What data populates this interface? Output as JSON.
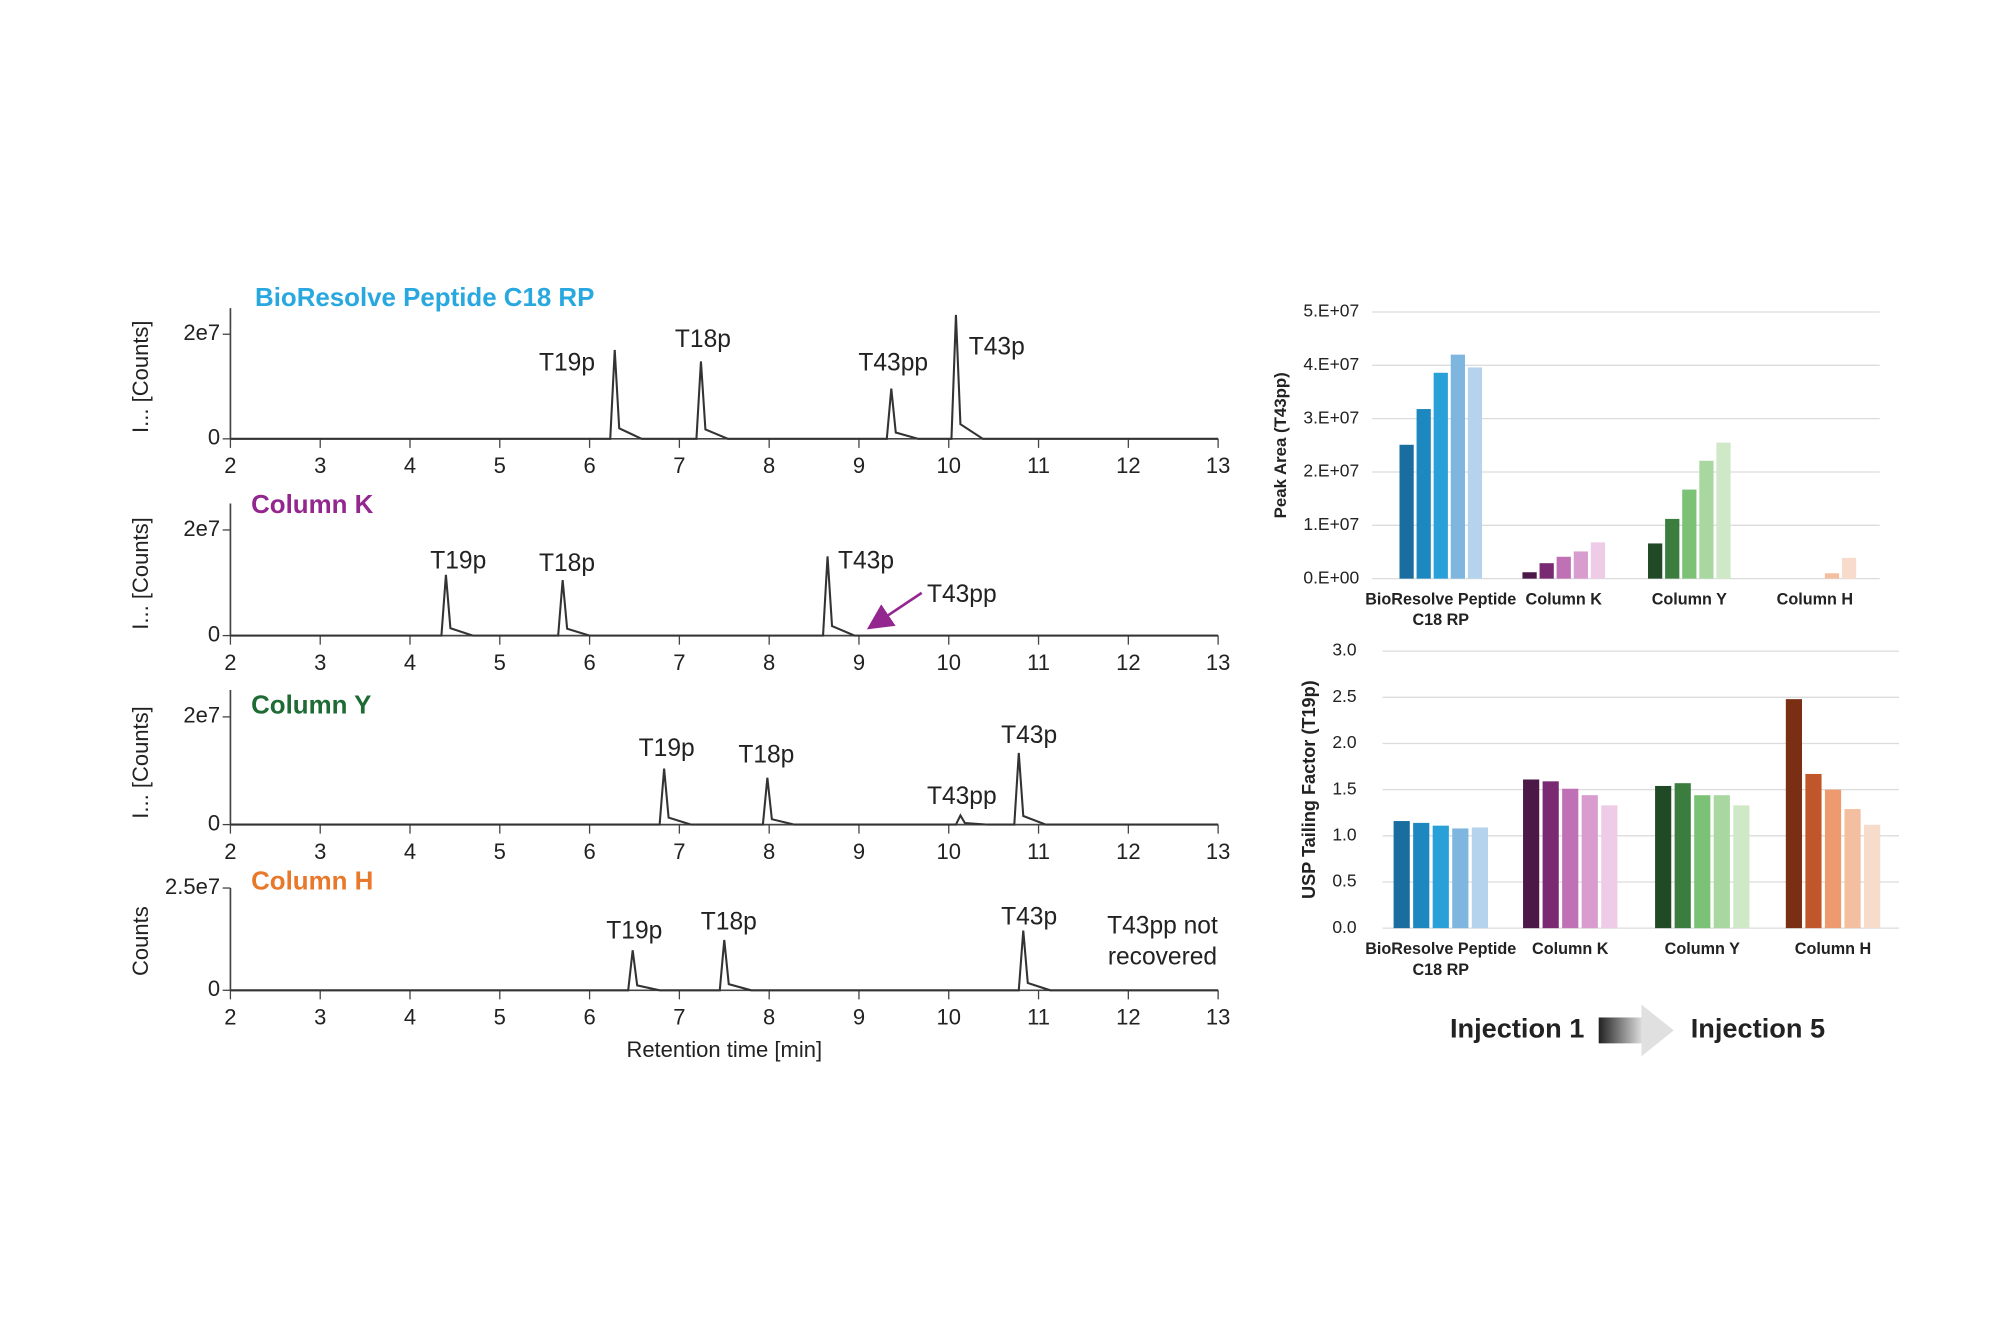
{
  "chart_data": [
    {
      "type": "line",
      "title": "BioResolve Peptide C18 RP",
      "title_color": "#29a8e0",
      "ylabel": "I... [Counts]",
      "color": "#333333",
      "x": [
        2,
        6.23,
        6.28,
        6.33,
        6.58,
        7.19,
        7.24,
        7.29,
        7.54,
        9.31,
        9.36,
        9.41,
        9.66,
        10.03,
        10.08,
        10.13,
        10.38,
        13
      ],
      "values": [
        0,
        0,
        17000000,
        2000000,
        0,
        0,
        14800000,
        1800000,
        0,
        0,
        9600000,
        1200000,
        0,
        0,
        23700000,
        2800000,
        0,
        0
      ],
      "xlim": [
        2,
        13
      ],
      "xticks": [
        2,
        3,
        4,
        5,
        6,
        7,
        8,
        9,
        10,
        11,
        12,
        13
      ],
      "ylim": [
        0,
        25000000
      ],
      "yticks": [
        0,
        {
          "value": 20000000,
          "label": "2e7"
        }
      ],
      "annotations": [
        "T19p",
        "T18p",
        "T43pp",
        "T43p"
      ]
    },
    {
      "type": "line",
      "title": "Column K",
      "title_color": "#93278f",
      "ylabel": "I... [Counts]",
      "color": "#333333",
      "x": [
        2,
        4.35,
        4.4,
        4.45,
        4.7,
        5.65,
        5.7,
        5.75,
        6.0,
        8.6,
        8.65,
        8.7,
        8.95,
        13
      ],
      "values": [
        0,
        0,
        11500000,
        1400000,
        0,
        0,
        10500000,
        1300000,
        0,
        0,
        15000000,
        1800000,
        0,
        0
      ],
      "xlim": [
        2,
        13
      ],
      "xticks": [
        2,
        3,
        4,
        5,
        6,
        7,
        8,
        9,
        10,
        11,
        12,
        13
      ],
      "ylim": [
        0,
        25000000
      ],
      "yticks": [
        0,
        {
          "value": 20000000,
          "label": "2e7"
        }
      ],
      "annotations": [
        "T19p",
        "T18p",
        "T43p",
        "T43pp"
      ]
    },
    {
      "type": "line",
      "title": "Column Y",
      "title_color": "#1e6b34",
      "ylabel": "I... [Counts]",
      "color": "#333333",
      "x": [
        2,
        6.78,
        6.83,
        6.88,
        7.13,
        7.93,
        7.98,
        8.03,
        8.28,
        10.08,
        10.13,
        10.18,
        10.43,
        10.73,
        10.78,
        10.83,
        11.08,
        13
      ],
      "values": [
        0,
        0,
        10400000,
        1300000,
        0,
        0,
        8700000,
        1000000,
        0,
        0,
        1700000,
        300000,
        0,
        0,
        13300000,
        1600000,
        0,
        0
      ],
      "xlim": [
        2,
        13
      ],
      "xticks": [
        2,
        3,
        4,
        5,
        6,
        7,
        8,
        9,
        10,
        11,
        12,
        13
      ],
      "ylim": [
        0,
        25000000
      ],
      "yticks": [
        0,
        {
          "value": 20000000,
          "label": "2e7"
        }
      ],
      "annotations": [
        "T19p",
        "T18p",
        "T43pp",
        "T43p"
      ]
    },
    {
      "type": "line",
      "title": "Column H",
      "title_color": "#e8792b",
      "ylabel": "Counts",
      "xlabel": "Retention time [min]",
      "color": "#333333",
      "x": [
        2,
        6.43,
        6.48,
        6.53,
        6.78,
        7.45,
        7.5,
        7.55,
        7.8,
        10.78,
        10.83,
        10.88,
        11.13,
        13
      ],
      "values": [
        0,
        0,
        9800000,
        1200000,
        0,
        0,
        12300000,
        1500000,
        0,
        0,
        14600000,
        1800000,
        0,
        0
      ],
      "xlim": [
        2,
        13
      ],
      "xticks": [
        2,
        3,
        4,
        5,
        6,
        7,
        8,
        9,
        10,
        11,
        12,
        13
      ],
      "ylim": [
        0,
        25000000
      ],
      "yticks": [
        0,
        {
          "value": 25000000,
          "label": "2.5e7"
        }
      ],
      "annotations": [
        "T19p",
        "T18p",
        "T43p"
      ],
      "note": [
        "T43pp not",
        "recovered"
      ]
    },
    {
      "type": "bar",
      "ylabel": "Peak Area (T43pp)",
      "grid": true,
      "categories": [
        "BioResolve Peptide C18 RP",
        "Column K",
        "Column Y",
        "Column H"
      ],
      "series": [
        {
          "values": [
            25100000,
            1200000,
            6600000,
            0
          ]
        },
        {
          "values": [
            31800000,
            2900000,
            11200000,
            0
          ]
        },
        {
          "values": [
            38600000,
            4100000,
            16700000,
            0
          ]
        },
        {
          "values": [
            42000000,
            5100000,
            22100000,
            1000000
          ]
        },
        {
          "values": [
            39600000,
            6800000,
            25500000,
            3900000
          ]
        }
      ],
      "bar_colors": [
        [
          "#1a6e9f",
          "#1d87bf",
          "#2aa0d8",
          "#7fb6e0",
          "#b5d3ec"
        ],
        [
          "#4b1848",
          "#7a2a72",
          "#c070b4",
          "#d89ccf",
          "#eecbe6"
        ],
        [
          "#1f4a25",
          "#3a7d3e",
          "#7cc276",
          "#a8d8a0",
          "#cfe8c8"
        ],
        [
          "#7a2e14",
          "#c0562a",
          "#ec9a6e",
          "#f4bfa0",
          "#f8dccb"
        ]
      ],
      "ylim": [
        0,
        50000000
      ],
      "yticks": [
        {
          "value": 0,
          "label": "0.E+00"
        },
        {
          "value": 10000000,
          "label": "1.E+07"
        },
        {
          "value": 20000000,
          "label": "2.E+07"
        },
        {
          "value": 30000000,
          "label": "3.E+07"
        },
        {
          "value": 40000000,
          "label": "4.E+07"
        },
        {
          "value": 50000000,
          "label": "5.E+07"
        }
      ]
    },
    {
      "type": "bar",
      "ylabel": "USP Tailing Factor (T19p)",
      "grid": true,
      "categories": [
        "BioResolve Peptide C18 RP",
        "Column K",
        "Column Y",
        "Column H"
      ],
      "series": [
        {
          "values": [
            1.16,
            1.61,
            1.54,
            2.48
          ]
        },
        {
          "values": [
            1.14,
            1.59,
            1.57,
            1.67
          ]
        },
        {
          "values": [
            1.11,
            1.51,
            1.44,
            1.5
          ]
        },
        {
          "values": [
            1.08,
            1.44,
            1.44,
            1.29
          ]
        },
        {
          "values": [
            1.09,
            1.33,
            1.33,
            1.12
          ]
        }
      ],
      "bar_colors": [
        [
          "#1a6e9f",
          "#1d87bf",
          "#2aa0d8",
          "#7fb6e0",
          "#b5d3ec"
        ],
        [
          "#4b1848",
          "#7a2a72",
          "#c070b4",
          "#d89ccf",
          "#eecbe6"
        ],
        [
          "#1f4a25",
          "#3a7d3e",
          "#7cc276",
          "#a8d8a0",
          "#cfe8c8"
        ],
        [
          "#7a2e14",
          "#c0562a",
          "#ec9a6e",
          "#f4bfa0",
          "#f8dccb"
        ]
      ],
      "ylim": [
        0,
        3
      ],
      "yticks": [
        {
          "value": 0,
          "label": "0.0"
        },
        0.5,
        {
          "value": 1,
          "label": "1.0"
        },
        1.5,
        {
          "value": 2,
          "label": "2.0"
        },
        2.5,
        {
          "value": 3,
          "label": "3.0"
        }
      ]
    }
  ],
  "legend": {
    "from": "Injection 1",
    "to": "Injection 5"
  }
}
